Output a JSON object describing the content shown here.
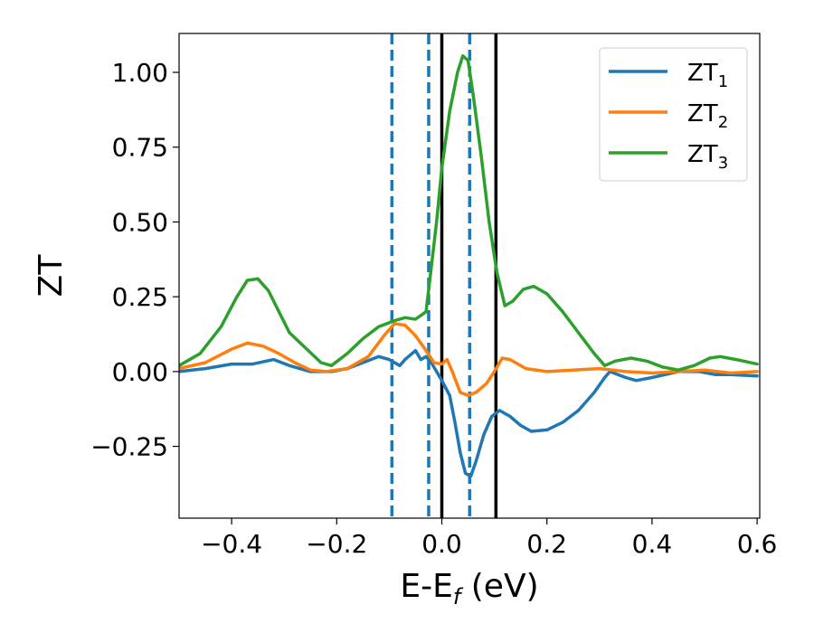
{
  "chart_data": {
    "type": "line",
    "xlabel": "E-E",
    "xlabel_sub": "f",
    "xlabel_unit": " (eV)",
    "ylabel": "ZT",
    "xlim": [
      -0.5,
      0.605
    ],
    "ylim": [
      -0.49,
      1.13
    ],
    "xticks": [
      -0.4,
      -0.2,
      0.0,
      0.2,
      0.4,
      0.6
    ],
    "xtick_labels": [
      "−0.4",
      "−0.2",
      "0.0",
      "0.2",
      "0.4",
      "0.6"
    ],
    "yticks": [
      -0.25,
      0.0,
      0.25,
      0.5,
      0.75,
      1.0
    ],
    "ytick_labels": [
      "−0.25",
      "0.00",
      "0.25",
      "0.50",
      "0.75",
      "1.00"
    ],
    "grid": false,
    "legend_position": "top-right",
    "vlines": [
      {
        "x": -0.095,
        "style": "dashed",
        "color": "#1f77b4"
      },
      {
        "x": -0.025,
        "style": "dashed",
        "color": "#1f77b4"
      },
      {
        "x": 0.0,
        "style": "solid",
        "color": "#000000"
      },
      {
        "x": 0.053,
        "style": "dashed",
        "color": "#1f77b4"
      },
      {
        "x": 0.103,
        "style": "solid",
        "color": "#000000"
      }
    ],
    "series": [
      {
        "name": "ZT",
        "subscript": "1",
        "color": "#1f77b4",
        "points": [
          [
            -0.5,
            0.0
          ],
          [
            -0.45,
            0.01
          ],
          [
            -0.4,
            0.025
          ],
          [
            -0.36,
            0.025
          ],
          [
            -0.32,
            0.04
          ],
          [
            -0.29,
            0.02
          ],
          [
            -0.25,
            0.0
          ],
          [
            -0.21,
            0.0
          ],
          [
            -0.18,
            0.01
          ],
          [
            -0.15,
            0.03
          ],
          [
            -0.12,
            0.05
          ],
          [
            -0.1,
            0.04
          ],
          [
            -0.08,
            0.02
          ],
          [
            -0.07,
            0.04
          ],
          [
            -0.05,
            0.07
          ],
          [
            -0.04,
            0.04
          ],
          [
            -0.03,
            0.05
          ],
          [
            -0.02,
            0.03
          ],
          [
            0.0,
            -0.03
          ],
          [
            0.015,
            -0.08
          ],
          [
            0.025,
            -0.17
          ],
          [
            0.035,
            -0.27
          ],
          [
            0.045,
            -0.34
          ],
          [
            0.055,
            -0.35
          ],
          [
            0.065,
            -0.3
          ],
          [
            0.08,
            -0.21
          ],
          [
            0.095,
            -0.15
          ],
          [
            0.11,
            -0.13
          ],
          [
            0.13,
            -0.15
          ],
          [
            0.15,
            -0.18
          ],
          [
            0.17,
            -0.2
          ],
          [
            0.2,
            -0.195
          ],
          [
            0.23,
            -0.17
          ],
          [
            0.26,
            -0.13
          ],
          [
            0.29,
            -0.07
          ],
          [
            0.31,
            -0.02
          ],
          [
            0.32,
            0.0
          ],
          [
            0.35,
            -0.02
          ],
          [
            0.37,
            -0.03
          ],
          [
            0.4,
            -0.02
          ],
          [
            0.45,
            0.0
          ],
          [
            0.49,
            0.0
          ],
          [
            0.52,
            -0.01
          ],
          [
            0.55,
            -0.01
          ],
          [
            0.6,
            -0.015
          ]
        ]
      },
      {
        "name": "ZT",
        "subscript": "2",
        "color": "#ff7f0e",
        "points": [
          [
            -0.5,
            0.01
          ],
          [
            -0.45,
            0.03
          ],
          [
            -0.4,
            0.075
          ],
          [
            -0.37,
            0.095
          ],
          [
            -0.34,
            0.085
          ],
          [
            -0.31,
            0.06
          ],
          [
            -0.28,
            0.03
          ],
          [
            -0.25,
            0.005
          ],
          [
            -0.22,
            0.0
          ],
          [
            -0.18,
            0.01
          ],
          [
            -0.14,
            0.05
          ],
          [
            -0.11,
            0.12
          ],
          [
            -0.09,
            0.16
          ],
          [
            -0.07,
            0.155
          ],
          [
            -0.05,
            0.12
          ],
          [
            -0.03,
            0.07
          ],
          [
            -0.015,
            0.03
          ],
          [
            0.0,
            0.025
          ],
          [
            0.01,
            0.04
          ],
          [
            0.02,
            0.0
          ],
          [
            0.035,
            -0.07
          ],
          [
            0.05,
            -0.08
          ],
          [
            0.065,
            -0.07
          ],
          [
            0.085,
            -0.04
          ],
          [
            0.1,
            0.0
          ],
          [
            0.115,
            0.045
          ],
          [
            0.13,
            0.04
          ],
          [
            0.16,
            0.01
          ],
          [
            0.2,
            0.0
          ],
          [
            0.25,
            0.005
          ],
          [
            0.3,
            0.01
          ],
          [
            0.35,
            0.0
          ],
          [
            0.4,
            -0.005
          ],
          [
            0.45,
            0.0
          ],
          [
            0.5,
            0.005
          ],
          [
            0.55,
            -0.005
          ],
          [
            0.6,
            0.0
          ]
        ]
      },
      {
        "name": "ZT",
        "subscript": "3",
        "color": "#2ca02c",
        "points": [
          [
            -0.5,
            0.02
          ],
          [
            -0.46,
            0.06
          ],
          [
            -0.42,
            0.15
          ],
          [
            -0.39,
            0.25
          ],
          [
            -0.37,
            0.305
          ],
          [
            -0.35,
            0.31
          ],
          [
            -0.33,
            0.27
          ],
          [
            -0.31,
            0.2
          ],
          [
            -0.29,
            0.13
          ],
          [
            -0.26,
            0.08
          ],
          [
            -0.23,
            0.03
          ],
          [
            -0.21,
            0.02
          ],
          [
            -0.18,
            0.06
          ],
          [
            -0.15,
            0.11
          ],
          [
            -0.12,
            0.15
          ],
          [
            -0.09,
            0.17
          ],
          [
            -0.07,
            0.18
          ],
          [
            -0.05,
            0.175
          ],
          [
            -0.03,
            0.2
          ],
          [
            -0.02,
            0.35
          ],
          [
            -0.01,
            0.5
          ],
          [
            0.0,
            0.68
          ],
          [
            0.015,
            0.87
          ],
          [
            0.03,
            1.0
          ],
          [
            0.04,
            1.055
          ],
          [
            0.05,
            1.04
          ],
          [
            0.06,
            0.92
          ],
          [
            0.075,
            0.72
          ],
          [
            0.09,
            0.5
          ],
          [
            0.105,
            0.33
          ],
          [
            0.12,
            0.22
          ],
          [
            0.135,
            0.235
          ],
          [
            0.155,
            0.275
          ],
          [
            0.175,
            0.285
          ],
          [
            0.2,
            0.26
          ],
          [
            0.23,
            0.2
          ],
          [
            0.26,
            0.13
          ],
          [
            0.29,
            0.06
          ],
          [
            0.31,
            0.02
          ],
          [
            0.33,
            0.035
          ],
          [
            0.36,
            0.045
          ],
          [
            0.39,
            0.035
          ],
          [
            0.42,
            0.015
          ],
          [
            0.45,
            0.005
          ],
          [
            0.48,
            0.02
          ],
          [
            0.51,
            0.045
          ],
          [
            0.53,
            0.05
          ],
          [
            0.56,
            0.04
          ],
          [
            0.6,
            0.025
          ]
        ]
      }
    ]
  }
}
